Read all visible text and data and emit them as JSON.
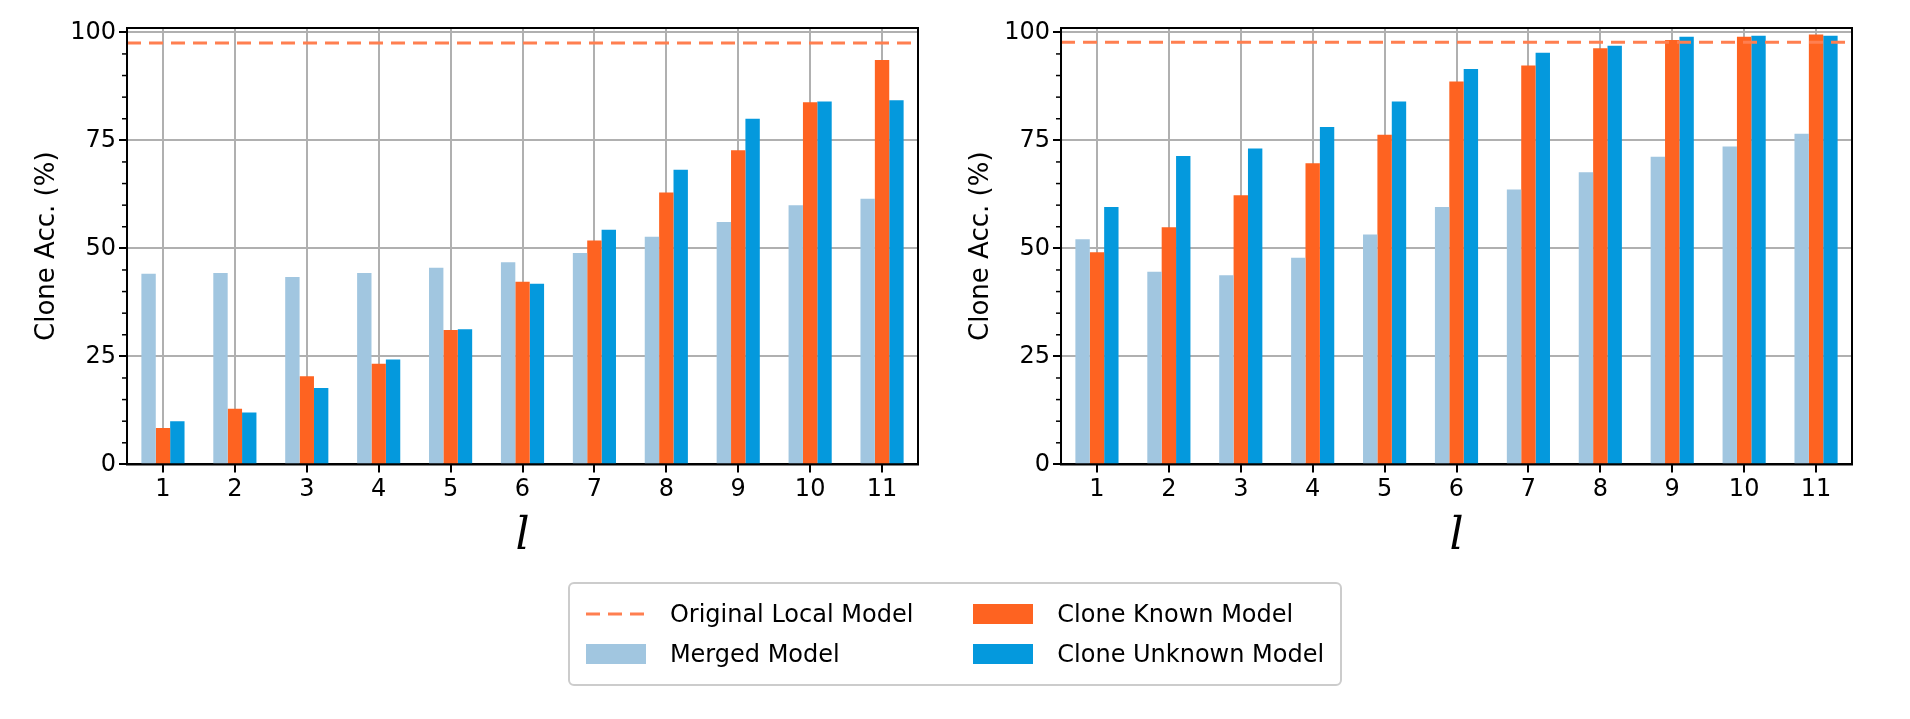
{
  "chart_data": [
    {
      "type": "bar",
      "xlabel": "l",
      "ylabel": "Clone Acc. (%)",
      "categories": [
        "1",
        "2",
        "3",
        "4",
        "5",
        "6",
        "7",
        "8",
        "9",
        "10",
        "11"
      ],
      "series": [
        {
          "name": "Merged Model",
          "color": "#a1c6e0",
          "values": [
            44.1,
            44.3,
            43.4,
            44.3,
            45.5,
            46.8,
            48.9,
            52.7,
            56.1,
            60.0,
            61.5
          ]
        },
        {
          "name": "Clone Known Model",
          "color": "#fe6321",
          "values": [
            8.4,
            12.9,
            20.4,
            23.3,
            31.1,
            42.3,
            51.8,
            62.9,
            72.7,
            83.8,
            93.6
          ]
        },
        {
          "name": "Clone Unknown Model",
          "color": "#0499dd",
          "values": [
            10.0,
            12.0,
            17.7,
            24.3,
            31.3,
            41.8,
            54.3,
            68.2,
            80.0,
            84.0,
            84.3
          ]
        }
      ],
      "ref_lines": [
        {
          "axis": "y",
          "value": 97.5,
          "label": "Original Local Model",
          "color": "#ff7f50",
          "line_style": "dashed"
        }
      ],
      "ylim": [
        0,
        101
      ],
      "yticks": [
        0,
        25,
        50,
        75,
        100
      ],
      "grid": true,
      "legend": "bottom"
    },
    {
      "type": "bar",
      "xlabel": "l",
      "ylabel": "Clone Acc. (%)",
      "categories": [
        "1",
        "2",
        "3",
        "4",
        "5",
        "6",
        "7",
        "8",
        "9",
        "10",
        "11"
      ],
      "series": [
        {
          "color": "#a1c6e0",
          "values": [
            52.1,
            44.6,
            43.8,
            47.8,
            53.2,
            59.6,
            63.6,
            67.6,
            71.2,
            73.6,
            76.5
          ]
        },
        {
          "color": "#fe6321",
          "values": [
            49.1,
            54.9,
            62.3,
            69.7,
            76.3,
            88.6,
            92.3,
            96.3,
            98.2,
            99.0,
            99.5
          ]
        },
        {
          "color": "#0499dd",
          "values": [
            59.6,
            71.4,
            73.1,
            78.1,
            84.0,
            91.5,
            95.3,
            96.9,
            99.0,
            99.2,
            99.2
          ]
        }
      ],
      "ref_lines": [
        {
          "axis": "y",
          "value": 97.7,
          "color": "#ff7f50",
          "line_style": "dashed"
        }
      ],
      "ylim": [
        0,
        101
      ],
      "yticks": [
        0,
        25,
        50,
        75,
        100
      ],
      "grid": true
    }
  ]
}
